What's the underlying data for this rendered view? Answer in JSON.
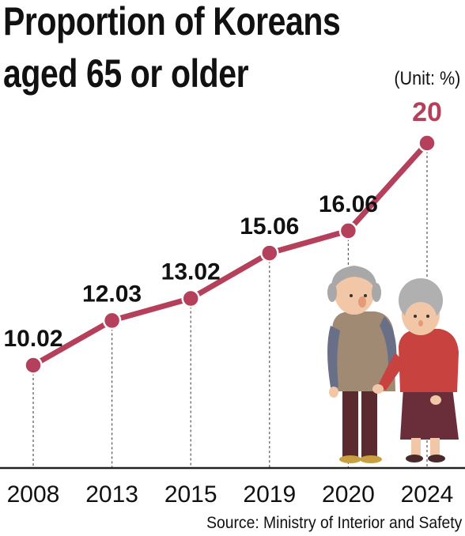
{
  "title_line1": "Proportion of Koreans",
  "title_line2": "aged 65 or older",
  "unit": "(Unit: %)",
  "source": "Source: Ministry of Interior and Safety",
  "colors": {
    "line": "#b5405c",
    "highlight_label": "#b5405c",
    "text": "#111111",
    "axis": "#222222",
    "guide": "#555555"
  },
  "chart_data": {
    "type": "line",
    "title": "Proportion of Koreans aged 65 or older",
    "xlabel": "",
    "ylabel": "",
    "unit": "%",
    "categories": [
      "2008",
      "2013",
      "2015",
      "2019",
      "2020",
      "2024"
    ],
    "series": [
      {
        "values": [
          10.02,
          12.03,
          13.02,
          15.06,
          16.06,
          20
        ],
        "labels": [
          "10.02",
          "12.03",
          "13.02",
          "15.06",
          "16.06",
          "20"
        ]
      }
    ],
    "highlight_index": 5,
    "grid": false,
    "legend": "none",
    "illustration": "elderly-couple-illustration"
  }
}
